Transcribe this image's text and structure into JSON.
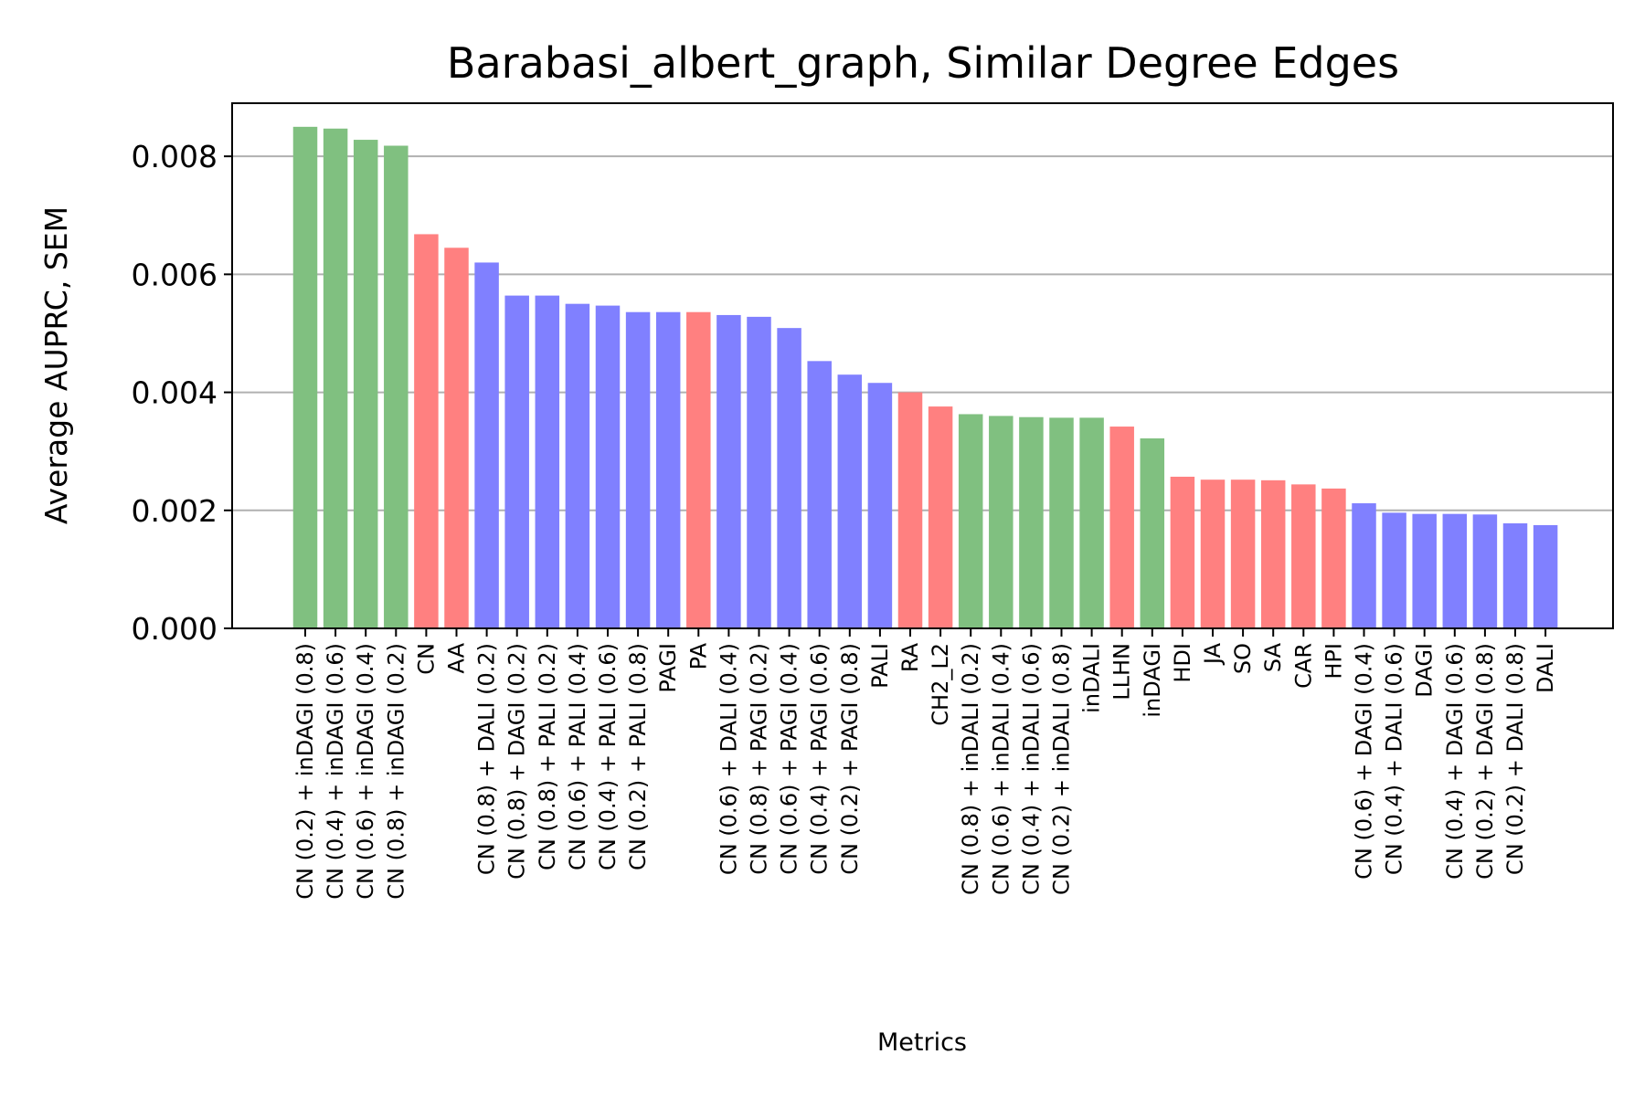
{
  "chart_data": {
    "type": "bar",
    "title": "Barabasi_albert_graph, Similar Degree Edges",
    "xlabel": "Metrics",
    "ylabel": "Average AUPRC, SEM",
    "ylim": [
      0,
      0.0089
    ],
    "yticks": [
      "0.000",
      "0.002",
      "0.004",
      "0.006",
      "0.008"
    ],
    "grid": "horizontal",
    "colors": {
      "green": "#80c080",
      "red": "#ff8080",
      "blue": "#8080ff"
    },
    "bars": [
      {
        "label": "CN (0.2) + inDAGI (0.8)",
        "value": 0.0085,
        "color": "green"
      },
      {
        "label": "CN (0.4) + inDAGI (0.6)",
        "value": 0.00847,
        "color": "green"
      },
      {
        "label": "CN (0.6) + inDAGI (0.4)",
        "value": 0.00828,
        "color": "green"
      },
      {
        "label": "CN (0.8) + inDAGI (0.2)",
        "value": 0.00818,
        "color": "green"
      },
      {
        "label": "CN",
        "value": 0.00668,
        "color": "red"
      },
      {
        "label": "AA",
        "value": 0.00645,
        "color": "red"
      },
      {
        "label": "CN (0.8) + DALI (0.2)",
        "value": 0.0062,
        "color": "blue"
      },
      {
        "label": "CN (0.8) + DAGI (0.2)",
        "value": 0.00564,
        "color": "blue"
      },
      {
        "label": "CN (0.8) + PALI (0.2)",
        "value": 0.00564,
        "color": "blue"
      },
      {
        "label": "CN (0.6) + PALI (0.4)",
        "value": 0.0055,
        "color": "blue"
      },
      {
        "label": "CN (0.4) + PALI (0.6)",
        "value": 0.00547,
        "color": "blue"
      },
      {
        "label": "CN (0.2) + PALI (0.8)",
        "value": 0.00536,
        "color": "blue"
      },
      {
        "label": "PAGI",
        "value": 0.00536,
        "color": "blue"
      },
      {
        "label": "PA",
        "value": 0.00536,
        "color": "red"
      },
      {
        "label": "CN (0.6) + DALI (0.4)",
        "value": 0.00531,
        "color": "blue"
      },
      {
        "label": "CN (0.8) + PAGI (0.2)",
        "value": 0.00528,
        "color": "blue"
      },
      {
        "label": "CN (0.6) + PAGI (0.4)",
        "value": 0.00509,
        "color": "blue"
      },
      {
        "label": "CN (0.4) + PAGI (0.6)",
        "value": 0.00453,
        "color": "blue"
      },
      {
        "label": "CN (0.2) + PAGI (0.8)",
        "value": 0.0043,
        "color": "blue"
      },
      {
        "label": "PALI",
        "value": 0.00416,
        "color": "blue"
      },
      {
        "label": "RA",
        "value": 0.004,
        "color": "red"
      },
      {
        "label": "CH2_L2",
        "value": 0.00376,
        "color": "red"
      },
      {
        "label": "CN (0.8) + inDALI (0.2)",
        "value": 0.00363,
        "color": "green"
      },
      {
        "label": "CN (0.6) + inDALI (0.4)",
        "value": 0.0036,
        "color": "green"
      },
      {
        "label": "CN (0.4) + inDALI (0.6)",
        "value": 0.00358,
        "color": "green"
      },
      {
        "label": "CN (0.2) + inDALI (0.8)",
        "value": 0.00357,
        "color": "green"
      },
      {
        "label": "inDALI",
        "value": 0.00357,
        "color": "green"
      },
      {
        "label": "LLHN",
        "value": 0.00342,
        "color": "red"
      },
      {
        "label": "inDAGI",
        "value": 0.00322,
        "color": "green"
      },
      {
        "label": "HDI",
        "value": 0.00257,
        "color": "red"
      },
      {
        "label": "JA",
        "value": 0.00252,
        "color": "red"
      },
      {
        "label": "SO",
        "value": 0.00252,
        "color": "red"
      },
      {
        "label": "SA",
        "value": 0.00251,
        "color": "red"
      },
      {
        "label": "CAR",
        "value": 0.00244,
        "color": "red"
      },
      {
        "label": "HPI",
        "value": 0.00237,
        "color": "red"
      },
      {
        "label": "CN (0.6) + DAGI (0.4)",
        "value": 0.00212,
        "color": "blue"
      },
      {
        "label": "CN (0.4) + DALI (0.6)",
        "value": 0.00196,
        "color": "blue"
      },
      {
        "label": "DAGI",
        "value": 0.00194,
        "color": "blue"
      },
      {
        "label": "CN (0.4) + DAGI (0.6)",
        "value": 0.00194,
        "color": "blue"
      },
      {
        "label": "CN (0.2) + DAGI (0.8)",
        "value": 0.00193,
        "color": "blue"
      },
      {
        "label": "CN (0.2) + DALI (0.8)",
        "value": 0.00178,
        "color": "blue"
      },
      {
        "label": "DALI",
        "value": 0.00175,
        "color": "blue"
      }
    ]
  }
}
